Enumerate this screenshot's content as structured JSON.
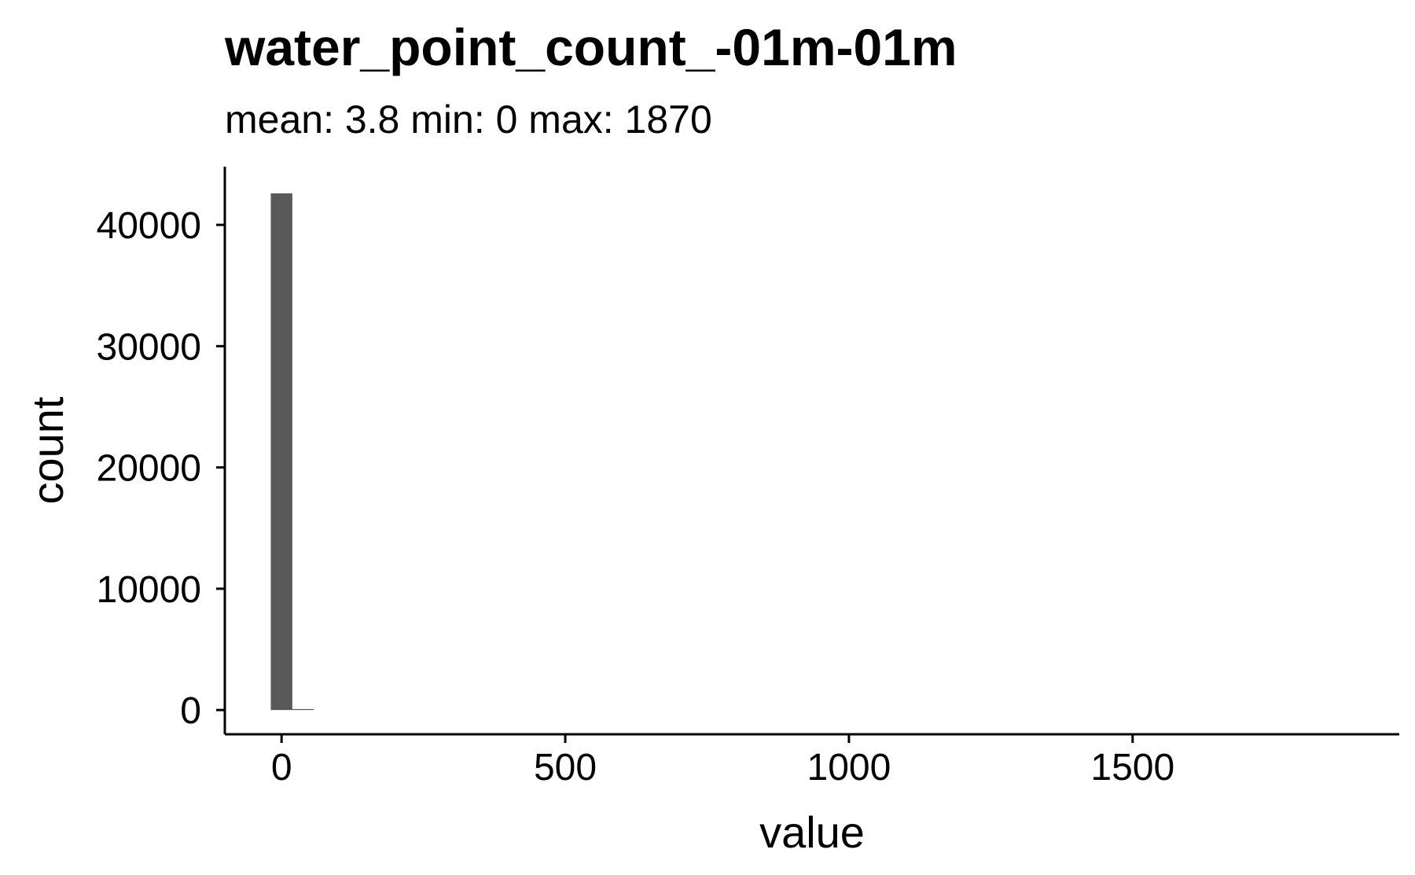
{
  "chart_data": {
    "type": "bar",
    "title": "water_point_count_-01m-01m",
    "subtitle": "mean: 3.8   min: 0   max: 1870",
    "xlabel": "value",
    "ylabel": "count",
    "xlim": [
      -100,
      1970
    ],
    "ylim": [
      -2000,
      44800
    ],
    "x_ticks": [
      0,
      500,
      1000,
      1500
    ],
    "x_tick_labels": [
      "0",
      "500",
      "1000",
      "1500"
    ],
    "y_ticks": [
      0,
      10000,
      20000,
      30000,
      40000
    ],
    "y_tick_labels": [
      "0",
      "10000",
      "20000",
      "30000",
      "40000"
    ],
    "bin_width": 38,
    "bins": [
      {
        "x": 0,
        "count": 42600
      },
      {
        "x": 38,
        "count": 80
      }
    ],
    "grid": false,
    "bar_color": "#595959"
  }
}
